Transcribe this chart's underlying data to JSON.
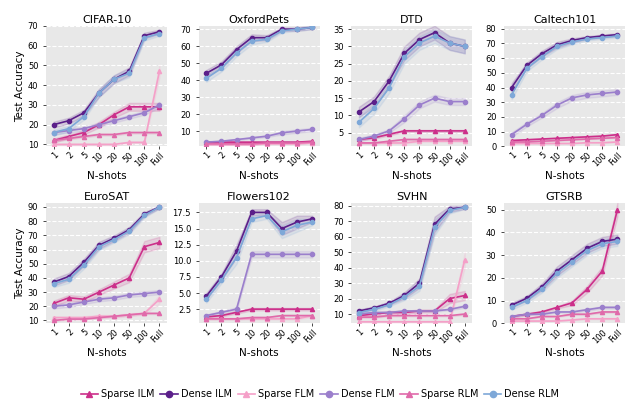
{
  "x_labels": [
    "1",
    "2",
    "5",
    "10",
    "20",
    "50",
    "100",
    "Full"
  ],
  "x_vals": [
    0,
    1,
    2,
    3,
    4,
    5,
    6,
    7
  ],
  "datasets": {
    "CIFAR-10": {
      "ylim": [
        9,
        70
      ],
      "yticks": [
        10,
        20,
        30,
        40,
        50,
        60,
        70
      ],
      "Sparse ILM": {
        "mean": [
          12,
          14,
          16,
          20,
          25,
          29,
          29,
          29
        ],
        "std": [
          1.0,
          1.0,
          1.0,
          1.5,
          1.5,
          2.0,
          2.0,
          2.0
        ]
      },
      "Dense ILM": {
        "mean": [
          20,
          22,
          26,
          36,
          43,
          47,
          65,
          67
        ],
        "std": [
          1.5,
          1.5,
          1.5,
          2.0,
          2.0,
          2.0,
          1.5,
          1.0
        ]
      },
      "Sparse FLM": {
        "mean": [
          10,
          10,
          10,
          10,
          10,
          11,
          11,
          47
        ],
        "std": [
          0.5,
          0.5,
          0.5,
          0.5,
          0.5,
          0.5,
          0.5,
          3.0
        ]
      },
      "Dense FLM": {
        "mean": [
          16,
          17,
          18,
          20,
          22,
          24,
          26,
          30
        ],
        "std": [
          1.0,
          1.0,
          1.0,
          1.0,
          1.0,
          1.0,
          1.0,
          1.5
        ]
      },
      "Sparse RLM": {
        "mean": [
          12,
          13,
          14,
          15,
          15,
          16,
          16,
          16
        ],
        "std": [
          0.5,
          0.5,
          0.5,
          0.5,
          0.5,
          0.5,
          0.5,
          0.5
        ]
      },
      "Dense RLM": {
        "mean": [
          16,
          18,
          24,
          36,
          43,
          46,
          64,
          66
        ],
        "std": [
          1.5,
          1.5,
          1.5,
          2.0,
          2.0,
          2.0,
          1.5,
          1.0
        ]
      }
    },
    "OxfordPets": {
      "ylim": [
        1,
        72
      ],
      "yticks": [
        10,
        20,
        30,
        40,
        50,
        60,
        70
      ],
      "Sparse ILM": {
        "mean": [
          3.5,
          3.5,
          3.5,
          3.5,
          3.5,
          3.5,
          3.5,
          4.0
        ],
        "std": [
          0.3,
          0.3,
          0.3,
          0.3,
          0.3,
          0.3,
          0.3,
          0.3
        ]
      },
      "Dense ILM": {
        "mean": [
          44,
          49,
          58,
          65,
          65,
          70,
          70,
          71
        ],
        "std": [
          2.0,
          2.0,
          2.0,
          2.0,
          1.5,
          1.0,
          1.0,
          1.0
        ]
      },
      "Sparse FLM": {
        "mean": [
          2.0,
          2.0,
          2.0,
          2.0,
          2.5,
          2.5,
          2.5,
          3.0
        ],
        "std": [
          0.2,
          0.2,
          0.2,
          0.2,
          0.2,
          0.2,
          0.2,
          0.2
        ]
      },
      "Dense FLM": {
        "mean": [
          3.5,
          4.0,
          5.0,
          6.0,
          7.0,
          9.0,
          10.0,
          11.0
        ],
        "std": [
          0.5,
          0.5,
          0.5,
          0.5,
          0.5,
          1.0,
          1.0,
          1.0
        ]
      },
      "Sparse RLM": {
        "mean": [
          2.5,
          2.5,
          2.5,
          2.5,
          3.0,
          3.0,
          3.0,
          3.5
        ],
        "std": [
          0.2,
          0.2,
          0.2,
          0.2,
          0.2,
          0.2,
          0.2,
          0.2
        ]
      },
      "Dense RLM": {
        "mean": [
          41,
          47,
          56,
          63,
          64,
          69,
          70,
          71
        ],
        "std": [
          2.0,
          2.0,
          2.0,
          2.0,
          1.5,
          1.0,
          1.0,
          1.0
        ]
      }
    },
    "DTD": {
      "ylim": [
        1,
        36
      ],
      "yticks": [
        5,
        10,
        15,
        20,
        25,
        30,
        35
      ],
      "Sparse ILM": {
        "mean": [
          3.0,
          3.5,
          4.5,
          5.5,
          5.5,
          5.5,
          5.5,
          5.5
        ],
        "std": [
          0.3,
          0.3,
          0.3,
          0.3,
          0.3,
          0.3,
          0.3,
          0.3
        ]
      },
      "Dense ILM": {
        "mean": [
          11,
          14,
          20,
          28,
          32,
          34,
          31,
          30
        ],
        "std": [
          1.5,
          1.5,
          1.5,
          2.0,
          2.0,
          2.0,
          2.0,
          2.0
        ]
      },
      "Sparse FLM": {
        "mean": [
          2.0,
          2.0,
          2.0,
          2.0,
          2.5,
          2.5,
          2.5,
          2.5
        ],
        "std": [
          0.2,
          0.2,
          0.2,
          0.2,
          0.2,
          0.2,
          0.2,
          0.2
        ]
      },
      "Dense FLM": {
        "mean": [
          3.0,
          4.0,
          5.5,
          9.0,
          13.0,
          15.0,
          14.0,
          14.0
        ],
        "std": [
          0.5,
          0.5,
          0.5,
          1.0,
          1.0,
          1.0,
          1.0,
          1.0
        ]
      },
      "Sparse RLM": {
        "mean": [
          2.0,
          2.0,
          2.5,
          3.0,
          3.0,
          3.0,
          3.0,
          3.0
        ],
        "std": [
          0.2,
          0.2,
          0.2,
          0.2,
          0.2,
          0.2,
          0.2,
          0.2
        ]
      },
      "Dense RLM": {
        "mean": [
          8,
          12,
          18,
          27,
          31,
          33,
          31,
          30
        ],
        "std": [
          1.5,
          1.5,
          1.5,
          2.0,
          2.0,
          2.0,
          2.0,
          2.0
        ]
      }
    },
    "Caltech101": {
      "ylim": [
        0,
        82
      ],
      "yticks": [
        0,
        10,
        20,
        30,
        40,
        50,
        60,
        70,
        80
      ],
      "Sparse ILM": {
        "mean": [
          4.0,
          4.5,
          5.0,
          5.5,
          6.0,
          6.5,
          7.0,
          8.0
        ],
        "std": [
          0.5,
          0.5,
          0.5,
          0.5,
          0.5,
          0.5,
          0.5,
          0.5
        ]
      },
      "Dense ILM": {
        "mean": [
          40,
          55,
          63,
          69,
          72,
          74,
          75,
          76
        ],
        "std": [
          3.0,
          2.0,
          2.0,
          2.0,
          1.5,
          1.0,
          1.0,
          1.0
        ]
      },
      "Sparse FLM": {
        "mean": [
          2.0,
          2.0,
          2.0,
          2.0,
          2.0,
          2.5,
          2.5,
          3.0
        ],
        "std": [
          0.2,
          0.2,
          0.2,
          0.2,
          0.2,
          0.2,
          0.2,
          0.2
        ]
      },
      "Dense FLM": {
        "mean": [
          8,
          15,
          21,
          28,
          33,
          35,
          36,
          37
        ],
        "std": [
          1.5,
          1.5,
          1.5,
          2.0,
          2.0,
          2.0,
          2.0,
          2.0
        ]
      },
      "Sparse RLM": {
        "mean": [
          3.0,
          3.0,
          3.5,
          4.0,
          4.5,
          5.0,
          5.5,
          6.0
        ],
        "std": [
          0.3,
          0.3,
          0.3,
          0.3,
          0.3,
          0.3,
          0.3,
          0.3
        ]
      },
      "Dense RLM": {
        "mean": [
          35,
          53,
          61,
          68,
          71,
          73,
          74,
          75
        ],
        "std": [
          3.0,
          2.0,
          2.0,
          2.0,
          1.5,
          1.0,
          1.0,
          1.0
        ]
      }
    },
    "EuroSAT": {
      "ylim": [
        8,
        93
      ],
      "yticks": [
        10,
        20,
        30,
        40,
        50,
        60,
        70,
        80,
        90
      ],
      "Sparse ILM": {
        "mean": [
          22,
          26,
          25,
          30,
          35,
          40,
          62,
          65
        ],
        "std": [
          2.0,
          2.0,
          2.0,
          2.0,
          2.5,
          3.0,
          4.0,
          4.0
        ]
      },
      "Dense ILM": {
        "mean": [
          37,
          41,
          51,
          63,
          68,
          74,
          85,
          90
        ],
        "std": [
          2.5,
          2.5,
          2.5,
          2.5,
          2.0,
          2.0,
          1.5,
          1.0
        ]
      },
      "Sparse FLM": {
        "mean": [
          12,
          12,
          12,
          13,
          13,
          14,
          15,
          25
        ],
        "std": [
          1.0,
          1.0,
          1.0,
          1.0,
          1.0,
          1.0,
          1.0,
          3.0
        ]
      },
      "Dense FLM": {
        "mean": [
          20,
          21,
          23,
          25,
          26,
          28,
          29,
          30
        ],
        "std": [
          1.5,
          1.5,
          1.5,
          1.5,
          1.5,
          1.5,
          1.5,
          1.5
        ]
      },
      "Sparse RLM": {
        "mean": [
          10,
          11,
          11,
          12,
          13,
          14,
          15,
          15
        ],
        "std": [
          0.5,
          0.5,
          0.5,
          0.5,
          0.5,
          0.5,
          0.5,
          0.5
        ]
      },
      "Dense RLM": {
        "mean": [
          36,
          39,
          49,
          62,
          67,
          73,
          84,
          90
        ],
        "std": [
          2.5,
          2.5,
          2.5,
          2.5,
          2.0,
          2.0,
          1.5,
          1.0
        ]
      }
    },
    "Flowers102": {
      "ylim": [
        0.3,
        19
      ],
      "yticks": [
        2.5,
        5.0,
        7.5,
        10.0,
        12.5,
        15.0,
        17.5
      ],
      "Sparse ILM": {
        "mean": [
          1.3,
          1.5,
          2.0,
          2.5,
          2.5,
          2.5,
          2.5,
          2.5
        ],
        "std": [
          0.15,
          0.15,
          0.2,
          0.2,
          0.2,
          0.2,
          0.2,
          0.2
        ]
      },
      "Dense ILM": {
        "mean": [
          4.5,
          7.5,
          11.5,
          17.5,
          17.5,
          15.0,
          16.0,
          16.5
        ],
        "std": [
          0.5,
          0.5,
          1.0,
          0.5,
          0.5,
          1.0,
          1.0,
          0.5
        ]
      },
      "Sparse FLM": {
        "mean": [
          1.0,
          1.0,
          1.0,
          1.0,
          1.0,
          1.0,
          1.0,
          1.5
        ],
        "std": [
          0.1,
          0.1,
          0.1,
          0.1,
          0.1,
          0.1,
          0.1,
          0.2
        ]
      },
      "Dense FLM": {
        "mean": [
          1.5,
          2.0,
          2.5,
          11.0,
          11.0,
          11.0,
          11.0,
          11.0
        ],
        "std": [
          0.2,
          0.2,
          0.3,
          0.5,
          0.5,
          0.5,
          0.5,
          0.5
        ]
      },
      "Sparse RLM": {
        "mean": [
          1.0,
          1.0,
          1.0,
          1.2,
          1.2,
          1.5,
          1.5,
          1.5
        ],
        "std": [
          0.1,
          0.1,
          0.1,
          0.1,
          0.1,
          0.1,
          0.1,
          0.1
        ]
      },
      "Dense RLM": {
        "mean": [
          4.0,
          7.0,
          10.5,
          16.5,
          17.0,
          14.5,
          15.5,
          16.0
        ],
        "std": [
          0.5,
          0.5,
          1.0,
          0.5,
          0.5,
          1.0,
          1.0,
          0.5
        ]
      }
    },
    "SVHN": {
      "ylim": [
        4,
        82
      ],
      "yticks": [
        10,
        20,
        30,
        40,
        50,
        60,
        70,
        80
      ],
      "Sparse ILM": {
        "mean": [
          9,
          10,
          11,
          11,
          12,
          12,
          20,
          22
        ],
        "std": [
          1.0,
          1.0,
          1.0,
          1.0,
          1.0,
          1.0,
          3.0,
          3.0
        ]
      },
      "Dense ILM": {
        "mean": [
          12,
          14,
          17,
          22,
          30,
          68,
          78,
          79
        ],
        "std": [
          1.0,
          1.0,
          1.0,
          2.0,
          3.0,
          5.0,
          2.0,
          1.0
        ]
      },
      "Sparse FLM": {
        "mean": [
          5,
          5,
          5,
          5,
          5,
          5,
          5,
          45
        ],
        "std": [
          0.5,
          0.5,
          0.5,
          0.5,
          0.5,
          0.5,
          0.5,
          5.0
        ]
      },
      "Dense FLM": {
        "mean": [
          10,
          11,
          11,
          12,
          12,
          12,
          13,
          15
        ],
        "std": [
          0.5,
          0.5,
          0.5,
          0.5,
          0.5,
          0.5,
          0.5,
          1.0
        ]
      },
      "Sparse RLM": {
        "mean": [
          8,
          8,
          9,
          9,
          9,
          9,
          9,
          10
        ],
        "std": [
          0.5,
          0.5,
          0.5,
          0.5,
          0.5,
          0.5,
          0.5,
          0.5
        ]
      },
      "Dense RLM": {
        "mean": [
          11,
          13,
          16,
          21,
          28,
          66,
          77,
          79
        ],
        "std": [
          1.0,
          1.0,
          1.0,
          2.0,
          3.0,
          5.0,
          2.0,
          1.0
        ]
      }
    },
    "GTSRB": {
      "ylim": [
        0,
        53
      ],
      "yticks": [
        0,
        10,
        20,
        30,
        40,
        50
      ],
      "Sparse ILM": {
        "mean": [
          3,
          4,
          5,
          7,
          9,
          15,
          23,
          50
        ],
        "std": [
          0.5,
          0.5,
          0.5,
          0.5,
          1.0,
          1.5,
          2.0,
          3.0
        ]
      },
      "Dense ILM": {
        "mean": [
          8,
          11,
          16,
          23,
          28,
          33,
          36,
          37
        ],
        "std": [
          1.0,
          1.0,
          1.5,
          2.0,
          2.0,
          2.0,
          2.0,
          2.0
        ]
      },
      "Sparse FLM": {
        "mean": [
          1,
          1,
          1,
          1,
          1.5,
          2.0,
          2.0,
          2.0
        ],
        "std": [
          0.1,
          0.1,
          0.1,
          0.1,
          0.2,
          0.2,
          0.2,
          0.2
        ]
      },
      "Dense FLM": {
        "mean": [
          3,
          4,
          4,
          5,
          5,
          6,
          7,
          7
        ],
        "std": [
          0.3,
          0.3,
          0.3,
          0.3,
          0.3,
          0.5,
          0.5,
          0.5
        ]
      },
      "Sparse RLM": {
        "mean": [
          2,
          2,
          3,
          3,
          4,
          4,
          5,
          5
        ],
        "std": [
          0.2,
          0.2,
          0.2,
          0.2,
          0.3,
          0.3,
          0.3,
          0.3
        ]
      },
      "Dense RLM": {
        "mean": [
          7,
          10,
          15,
          22,
          27,
          32,
          35,
          36
        ],
        "std": [
          1.0,
          1.0,
          1.5,
          2.0,
          2.0,
          2.0,
          2.0,
          2.0
        ]
      }
    }
  },
  "series_styles": {
    "Sparse ILM": {
      "color": "#cc2f8a",
      "marker": "^",
      "linestyle": "-",
      "lw": 1.2,
      "ms": 3.0
    },
    "Dense ILM": {
      "color": "#5b1f8a",
      "marker": "o",
      "linestyle": "-",
      "lw": 1.2,
      "ms": 3.0
    },
    "Sparse FLM": {
      "color": "#f5a0c8",
      "marker": "^",
      "linestyle": "-",
      "lw": 1.2,
      "ms": 3.0
    },
    "Dense FLM": {
      "color": "#9b7fcc",
      "marker": "o",
      "linestyle": "-",
      "lw": 1.2,
      "ms": 3.0
    },
    "Sparse RLM": {
      "color": "#e06aaa",
      "marker": "^",
      "linestyle": "-",
      "lw": 1.2,
      "ms": 3.0
    },
    "Dense RLM": {
      "color": "#7ea8d8",
      "marker": "o",
      "linestyle": "-",
      "lw": 1.2,
      "ms": 3.0
    }
  },
  "subplot_order": [
    [
      "CIFAR-10",
      "OxfordPets",
      "DTD",
      "Caltech101"
    ],
    [
      "EuroSAT",
      "Flowers102",
      "SVHN",
      "GTSRB"
    ]
  ],
  "bg_color": "#e8e8e8",
  "grid_color": "#ffffff",
  "title_fontsize": 8,
  "tick_fontsize": 6,
  "label_fontsize": 7.5,
  "legend_fontsize": 7
}
